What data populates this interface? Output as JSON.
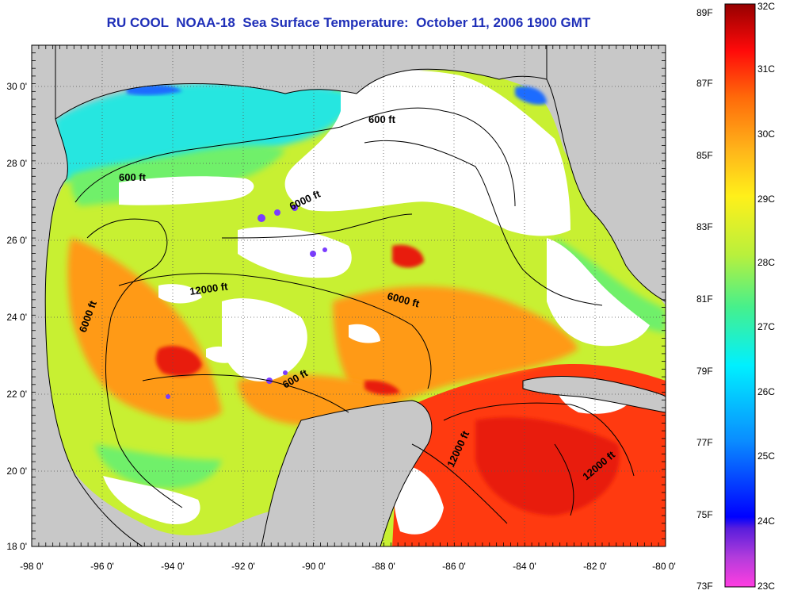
{
  "title": "RU COOL  NOAA-18  Sea Surface Temperature:  October 11, 2006 1900 GMT",
  "x_ticks": [
    "-98 0'",
    "-96 0'",
    "-94 0'",
    "-92 0'",
    "-90 0'",
    "-88 0'",
    "-86 0'",
    "-84 0'",
    "-82 0'",
    "-80 0'"
  ],
  "y_ticks": [
    "30 0'",
    "28 0'",
    "26 0'",
    "24 0'",
    "22 0'",
    "20 0'",
    "18 0'"
  ],
  "contour_labels": [
    "600 ft",
    "600 ft",
    "6000 ft",
    "12000 ft",
    "6000 ft",
    "6000 ft",
    "600 ft",
    "12000 ft",
    "12000 ft"
  ],
  "colorbar": {
    "fahrenheit": [
      "89F",
      "87F",
      "85F",
      "83F",
      "81F",
      "79F",
      "77F",
      "75F",
      "73F"
    ],
    "celsius": [
      "32C",
      "31C",
      "30C",
      "29C",
      "28C",
      "27C",
      "26C",
      "25C",
      "24C",
      "23C"
    ]
  },
  "colors": {
    "land": "#c8c8c8",
    "cloud": "#ffffff",
    "title": "#1f2fb8",
    "warm": "#ff3a10",
    "hot": "#e81e0a",
    "orange": "#ff9a18",
    "yellow": "#ffd21a",
    "yellow_green": "#c8f032",
    "green": "#6ff06a",
    "cyan": "#28e6e0",
    "blue": "#1e6cff"
  }
}
